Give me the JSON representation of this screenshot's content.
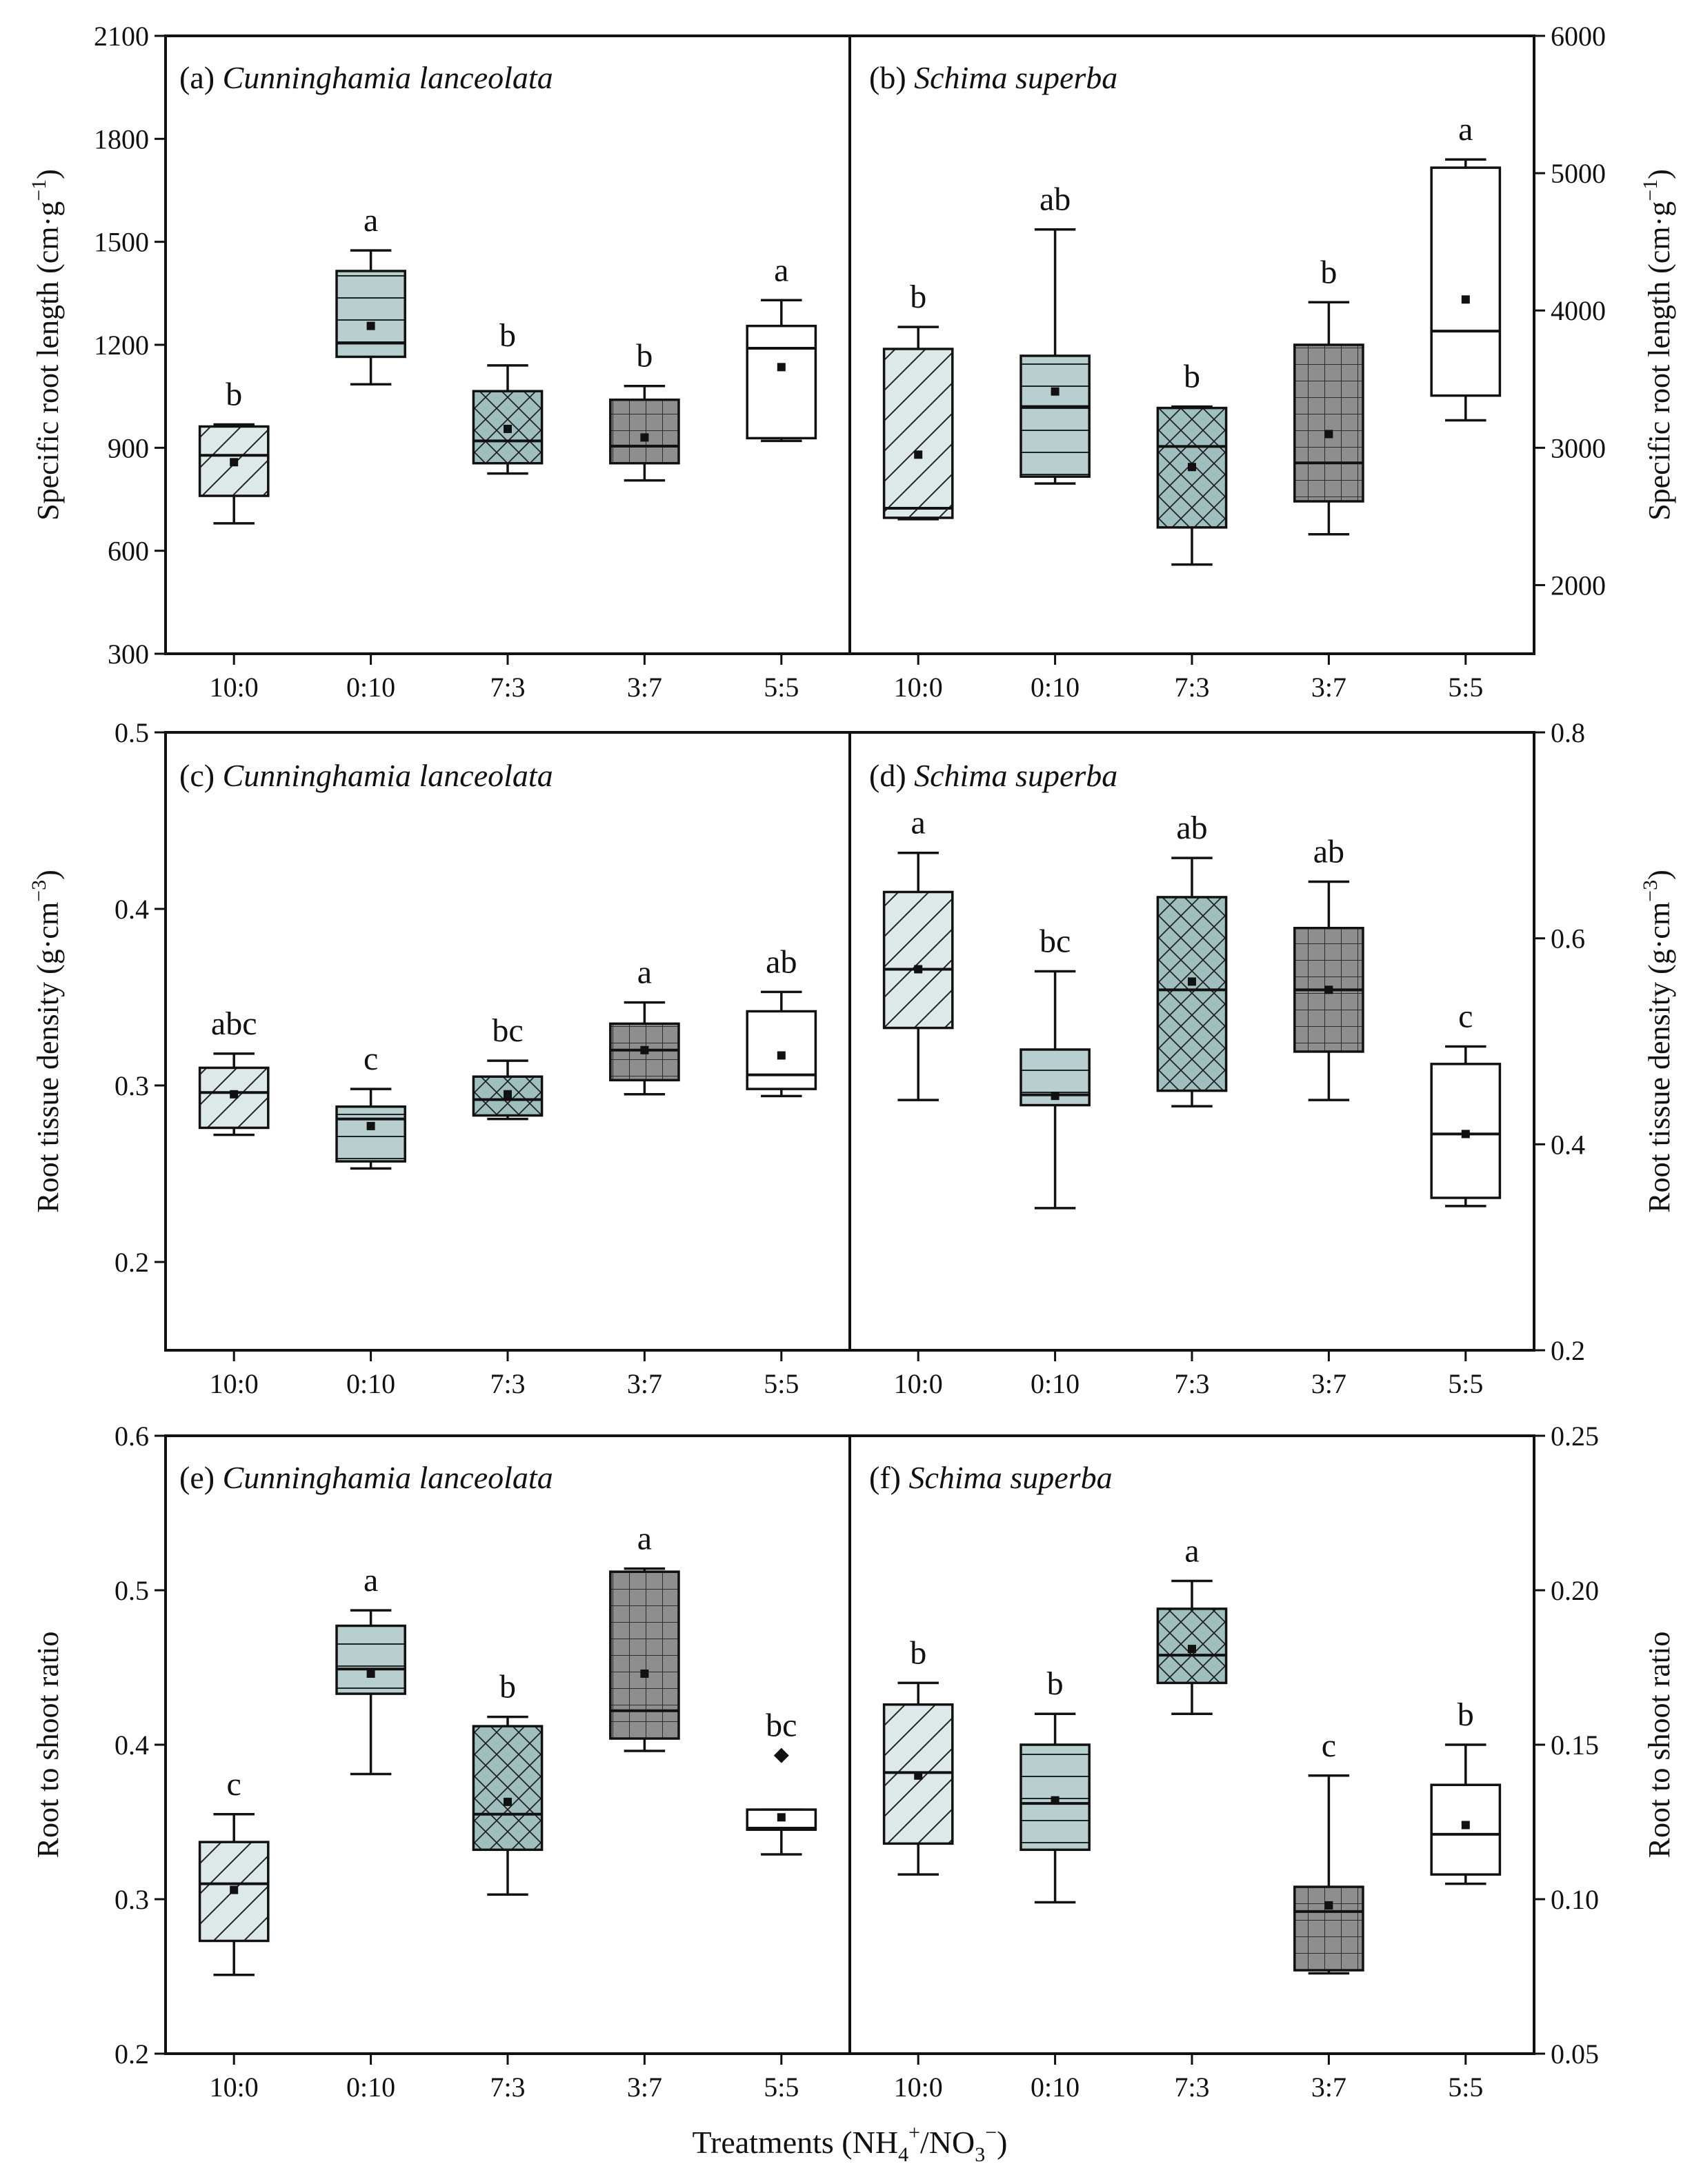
{
  "figure": {
    "x_title": "Treatments (NH4+/NO3−)",
    "x_title_parts": {
      "t1": "Treatments (NH",
      "s1": "4",
      "p1": "+",
      "t2": "/NO",
      "s2": "3",
      "p2": "−",
      "t3": ")"
    }
  },
  "colors": {
    "10:0": "#dde9e9",
    "0:10": "#b7cfcf",
    "7:3": "#9fbfbf",
    "3:7": "#8e8e8e",
    "5:5": "#ffffff",
    "ink": "#111111"
  },
  "categories": [
    "10:0",
    "0:10",
    "7:3",
    "3:7",
    "5:5"
  ],
  "rows": [
    {
      "left_ylabel": {
        "base": "Specific root length (cm·g",
        "sup": "−1",
        "close": ")"
      },
      "right_ylabel": {
        "base": "Specific root length (cm·g",
        "sup": "−1",
        "close": ")"
      }
    },
    {
      "left_ylabel": {
        "base": "Root tissue density (g·cm",
        "sup": "−3",
        "close": ")"
      },
      "right_ylabel": {
        "base": "Root tissue density (g·cm",
        "sup": "−3",
        "close": ")"
      }
    },
    {
      "left_ylabel": {
        "base": "Root to shoot ratio",
        "sup": "",
        "close": ""
      },
      "right_ylabel": {
        "base": "Root to shoot ratio",
        "sup": "",
        "close": ""
      }
    }
  ],
  "chart_data": [
    {
      "type": "box",
      "panel": "a",
      "title_prefix": "(a) ",
      "title_species": "Cunninghamia lanceolata",
      "ylabel": "Specific root length (cm·g−1)",
      "ylim": [
        300,
        2100
      ],
      "yticks": [
        300,
        600,
        900,
        1200,
        1500,
        1800,
        2100
      ],
      "categories": [
        "10:0",
        "0:10",
        "7:3",
        "3:7",
        "5:5"
      ],
      "boxes": [
        {
          "cat": "10:0",
          "min": 680,
          "q1": 760,
          "median": 878,
          "q3": 962,
          "max": 968,
          "mean": 858,
          "letter": "b"
        },
        {
          "cat": "0:10",
          "min": 1085,
          "q1": 1165,
          "median": 1205,
          "q3": 1415,
          "max": 1475,
          "mean": 1255,
          "letter": "a"
        },
        {
          "cat": "7:3",
          "min": 825,
          "q1": 855,
          "median": 920,
          "q3": 1065,
          "max": 1140,
          "mean": 955,
          "letter": "b"
        },
        {
          "cat": "3:7",
          "min": 805,
          "q1": 855,
          "median": 905,
          "q3": 1040,
          "max": 1080,
          "mean": 930,
          "letter": "b"
        },
        {
          "cat": "5:5",
          "min": 920,
          "q1": 928,
          "median": 1190,
          "q3": 1255,
          "max": 1330,
          "mean": 1135,
          "letter": "a"
        }
      ]
    },
    {
      "type": "box",
      "panel": "b",
      "title_prefix": "(b) ",
      "title_species": "Schima superba",
      "ylabel": "Specific root length (cm·g−1)",
      "ylim": [
        1500,
        6000
      ],
      "yticks": [
        2000,
        3000,
        4000,
        5000,
        6000
      ],
      "categories": [
        "10:0",
        "0:10",
        "7:3",
        "3:7",
        "5:5"
      ],
      "boxes": [
        {
          "cat": "10:0",
          "min": 2480,
          "q1": 2490,
          "median": 2560,
          "q3": 3720,
          "max": 3880,
          "mean": 2950,
          "letter": "b"
        },
        {
          "cat": "0:10",
          "min": 2740,
          "q1": 2790,
          "median": 3300,
          "q3": 3670,
          "max": 4590,
          "mean": 3410,
          "letter": "ab"
        },
        {
          "cat": "7:3",
          "min": 2150,
          "q1": 2420,
          "median": 3010,
          "q3": 3290,
          "max": 3300,
          "mean": 2860,
          "letter": "b"
        },
        {
          "cat": "3:7",
          "min": 2370,
          "q1": 2610,
          "median": 2890,
          "q3": 3750,
          "max": 4060,
          "mean": 3100,
          "letter": "b"
        },
        {
          "cat": "5:5",
          "min": 3200,
          "q1": 3380,
          "median": 3850,
          "q3": 5040,
          "max": 5100,
          "mean": 4080,
          "letter": "a"
        }
      ]
    },
    {
      "type": "box",
      "panel": "c",
      "title_prefix": "(c) ",
      "title_species": "Cunninghamia lanceolata",
      "ylabel": "Root tissue density (g·cm−3)",
      "ylim": [
        0.15,
        0.5
      ],
      "yticks": [
        0.2,
        0.3,
        0.4,
        0.5
      ],
      "categories": [
        "10:0",
        "0:10",
        "7:3",
        "3:7",
        "5:5"
      ],
      "boxes": [
        {
          "cat": "10:0",
          "min": 0.272,
          "q1": 0.276,
          "median": 0.296,
          "q3": 0.31,
          "max": 0.318,
          "mean": 0.295,
          "letter": "abc"
        },
        {
          "cat": "0:10",
          "min": 0.253,
          "q1": 0.257,
          "median": 0.281,
          "q3": 0.288,
          "max": 0.298,
          "mean": 0.277,
          "letter": "c"
        },
        {
          "cat": "7:3",
          "min": 0.281,
          "q1": 0.283,
          "median": 0.292,
          "q3": 0.305,
          "max": 0.314,
          "mean": 0.295,
          "letter": "bc"
        },
        {
          "cat": "3:7",
          "min": 0.295,
          "q1": 0.303,
          "median": 0.32,
          "q3": 0.335,
          "max": 0.347,
          "mean": 0.32,
          "letter": "a"
        },
        {
          "cat": "5:5",
          "min": 0.294,
          "q1": 0.298,
          "median": 0.306,
          "q3": 0.342,
          "max": 0.353,
          "mean": 0.317,
          "letter": "ab"
        }
      ]
    },
    {
      "type": "box",
      "panel": "d",
      "title_prefix": "(d) ",
      "title_species": "Schima superba",
      "ylabel": "Root tissue density (g·cm−3)",
      "ylim": [
        0.2,
        0.8
      ],
      "yticks": [
        0.2,
        0.4,
        0.6,
        0.8
      ],
      "categories": [
        "10:0",
        "0:10",
        "7:3",
        "3:7",
        "5:5"
      ],
      "boxes": [
        {
          "cat": "10:0",
          "min": 0.443,
          "q1": 0.513,
          "median": 0.57,
          "q3": 0.645,
          "max": 0.683,
          "mean": 0.57,
          "letter": "a"
        },
        {
          "cat": "0:10",
          "min": 0.338,
          "q1": 0.438,
          "median": 0.448,
          "q3": 0.492,
          "max": 0.568,
          "mean": 0.447,
          "letter": "bc"
        },
        {
          "cat": "7:3",
          "min": 0.437,
          "q1": 0.452,
          "median": 0.55,
          "q3": 0.64,
          "max": 0.678,
          "mean": 0.558,
          "letter": "ab"
        },
        {
          "cat": "3:7",
          "min": 0.443,
          "q1": 0.49,
          "median": 0.55,
          "q3": 0.61,
          "max": 0.655,
          "mean": 0.55,
          "letter": "ab"
        },
        {
          "cat": "5:5",
          "min": 0.34,
          "q1": 0.348,
          "median": 0.41,
          "q3": 0.478,
          "max": 0.495,
          "mean": 0.41,
          "letter": "c"
        }
      ]
    },
    {
      "type": "box",
      "panel": "e",
      "title_prefix": "(e) ",
      "title_species": "Cunninghamia lanceolata",
      "ylabel": "Root to shoot ratio",
      "ylim": [
        0.2,
        0.6
      ],
      "yticks": [
        0.2,
        0.3,
        0.4,
        0.5,
        0.6
      ],
      "categories": [
        "10:0",
        "0:10",
        "7:3",
        "3:7",
        "5:5"
      ],
      "boxes": [
        {
          "cat": "10:0",
          "min": 0.251,
          "q1": 0.273,
          "median": 0.31,
          "q3": 0.337,
          "max": 0.355,
          "mean": 0.306,
          "letter": "c"
        },
        {
          "cat": "0:10",
          "min": 0.381,
          "q1": 0.433,
          "median": 0.449,
          "q3": 0.477,
          "max": 0.487,
          "mean": 0.446,
          "letter": "a"
        },
        {
          "cat": "7:3",
          "min": 0.303,
          "q1": 0.332,
          "median": 0.355,
          "q3": 0.412,
          "max": 0.418,
          "mean": 0.363,
          "letter": "b"
        },
        {
          "cat": "3:7",
          "min": 0.396,
          "q1": 0.404,
          "median": 0.422,
          "q3": 0.512,
          "max": 0.514,
          "mean": 0.446,
          "letter": "a"
        },
        {
          "cat": "5:5",
          "min": 0.329,
          "q1": 0.345,
          "median": 0.346,
          "q3": 0.358,
          "max": 0.358,
          "mean": 0.353,
          "outlier": 0.393,
          "letter": "bc"
        }
      ]
    },
    {
      "type": "box",
      "panel": "f",
      "title_prefix": "(f) ",
      "title_species": "Schima superba",
      "ylabel": "Root to shoot ratio",
      "ylim": [
        0.05,
        0.25
      ],
      "yticks": [
        0.05,
        0.1,
        0.15,
        0.2,
        0.25
      ],
      "categories": [
        "10:0",
        "0:10",
        "7:3",
        "3:7",
        "5:5"
      ],
      "boxes": [
        {
          "cat": "10:0",
          "min": 0.108,
          "q1": 0.118,
          "median": 0.141,
          "q3": 0.163,
          "max": 0.17,
          "mean": 0.14,
          "letter": "b"
        },
        {
          "cat": "0:10",
          "min": 0.099,
          "q1": 0.116,
          "median": 0.131,
          "q3": 0.15,
          "max": 0.16,
          "mean": 0.132,
          "letter": "b"
        },
        {
          "cat": "7:3",
          "min": 0.16,
          "q1": 0.17,
          "median": 0.179,
          "q3": 0.194,
          "max": 0.203,
          "mean": 0.181,
          "letter": "a"
        },
        {
          "cat": "3:7",
          "min": 0.076,
          "q1": 0.077,
          "median": 0.096,
          "q3": 0.104,
          "max": 0.14,
          "mean": 0.098,
          "letter": "c"
        },
        {
          "cat": "5:5",
          "min": 0.105,
          "q1": 0.108,
          "median": 0.121,
          "q3": 0.137,
          "max": 0.15,
          "mean": 0.124,
          "letter": "b"
        }
      ]
    }
  ]
}
